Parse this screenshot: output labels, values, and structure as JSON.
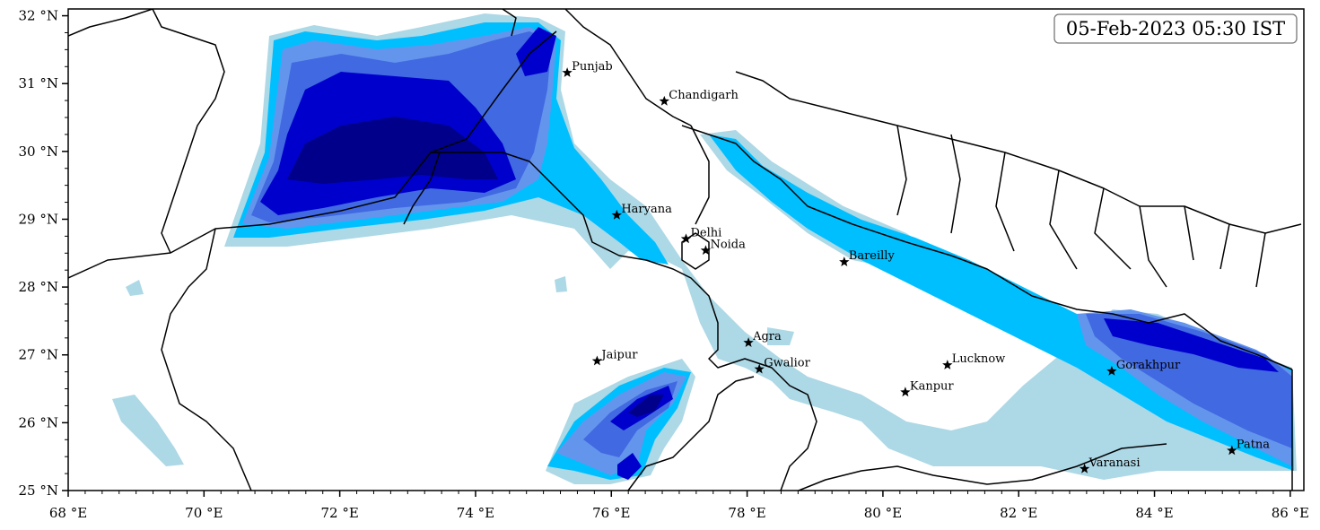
{
  "timestamp": "05-Feb-2023 05:30 IST",
  "map": {
    "lon_range": [
      68,
      86.2
    ],
    "lat_range": [
      25,
      32.1
    ],
    "colors": {
      "level1": "#add8e6",
      "level2": "#00bfff",
      "level3": "#6495ed",
      "level4": "#4169e1",
      "level5": "#0000cd",
      "level6": "#00008b",
      "boundary": "#000000"
    }
  },
  "x_ticks": [
    {
      "value": 68,
      "label": "68 °E"
    },
    {
      "value": 70,
      "label": "70 °E"
    },
    {
      "value": 72,
      "label": "72 °E"
    },
    {
      "value": 74,
      "label": "74 °E"
    },
    {
      "value": 76,
      "label": "76 °E"
    },
    {
      "value": 78,
      "label": "78 °E"
    },
    {
      "value": 80,
      "label": "80 °E"
    },
    {
      "value": 82,
      "label": "82 °E"
    },
    {
      "value": 84,
      "label": "84 °E"
    },
    {
      "value": 86,
      "label": "86 °E"
    }
  ],
  "y_ticks": [
    {
      "value": 25,
      "label": "25 °N"
    },
    {
      "value": 26,
      "label": "26 °N"
    },
    {
      "value": 27,
      "label": "27 °N"
    },
    {
      "value": 28,
      "label": "28 °N"
    },
    {
      "value": 29,
      "label": "29 °N"
    },
    {
      "value": 30,
      "label": "30 °N"
    },
    {
      "value": 31,
      "label": "31 °N"
    },
    {
      "value": 32,
      "label": "32 °N"
    }
  ],
  "cities": [
    {
      "name": "Punjab",
      "lon": 75.35,
      "lat": 31.16
    },
    {
      "name": "Chandigarh",
      "lon": 76.78,
      "lat": 30.74
    },
    {
      "name": "Haryana",
      "lon": 76.08,
      "lat": 29.06
    },
    {
      "name": "Delhi",
      "lon": 77.1,
      "lat": 28.71
    },
    {
      "name": "Noida",
      "lon": 77.39,
      "lat": 28.54
    },
    {
      "name": "Bareilly",
      "lon": 79.43,
      "lat": 28.37
    },
    {
      "name": "Agra",
      "lon": 78.02,
      "lat": 27.18
    },
    {
      "name": "Jaipur",
      "lon": 75.79,
      "lat": 26.91
    },
    {
      "name": "Gwalior",
      "lon": 78.18,
      "lat": 26.79
    },
    {
      "name": "Lucknow",
      "lon": 80.95,
      "lat": 26.85
    },
    {
      "name": "Kanpur",
      "lon": 80.33,
      "lat": 26.45
    },
    {
      "name": "Gorakhpur",
      "lon": 83.37,
      "lat": 26.76
    },
    {
      "name": "Varanasi",
      "lon": 82.97,
      "lat": 25.32
    },
    {
      "name": "Patna",
      "lon": 85.14,
      "lat": 25.59
    }
  ]
}
